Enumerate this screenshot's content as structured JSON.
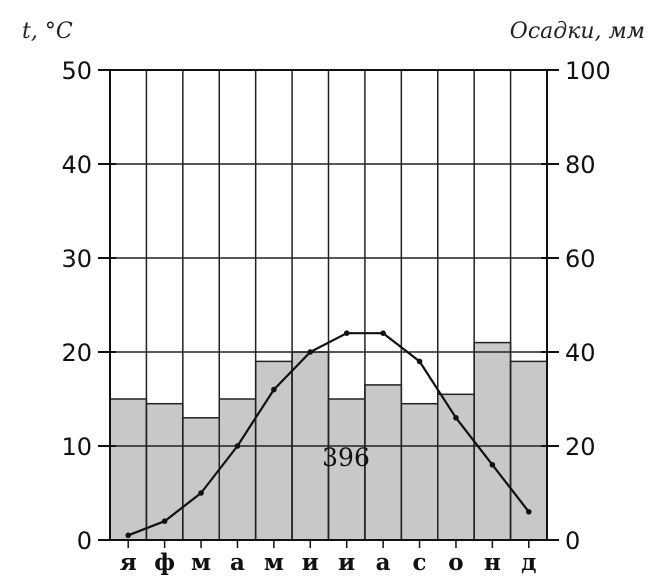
{
  "chart_data": {
    "type": "bar",
    "categories": [
      "я",
      "ф",
      "м",
      "а",
      "м",
      "и",
      "и",
      "а",
      "с",
      "о",
      "н",
      "д"
    ],
    "left_axis_label": "t, °C",
    "right_axis_label": "Осадки, мм",
    "left_ylim": [
      0,
      50
    ],
    "left_ticks": [
      "0",
      "10",
      "20",
      "30",
      "40",
      "50"
    ],
    "right_ylim": [
      0,
      100
    ],
    "right_ticks": [
      "0",
      "20",
      "40",
      "60",
      "80",
      "100"
    ],
    "grid": true,
    "series": [
      {
        "kind": "bar",
        "axis": "right",
        "color": "#c8c8c8",
        "values": [
          30,
          29,
          26,
          30,
          38,
          40,
          30,
          33,
          29,
          31,
          42,
          38
        ]
      },
      {
        "kind": "line",
        "axis": "left",
        "color": "#111111",
        "values": [
          0.5,
          2,
          5,
          10,
          16,
          20,
          22,
          22,
          19,
          13,
          8,
          3
        ]
      }
    ],
    "annotation": "396"
  }
}
